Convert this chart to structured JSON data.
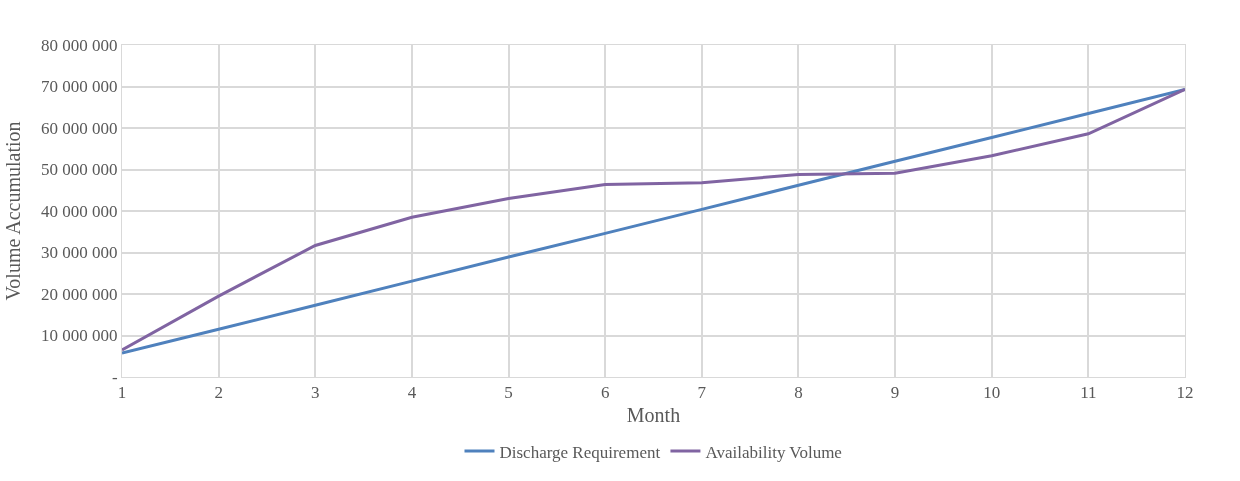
{
  "chart_data": {
    "type": "line",
    "xlabel": "Month",
    "ylabel": "Volume Accumulation",
    "x": [
      1,
      2,
      3,
      4,
      5,
      6,
      7,
      8,
      9,
      10,
      11,
      12
    ],
    "series": [
      {
        "name": "Discharge Requirement",
        "color": "#4f81bd",
        "values": [
          5800000,
          11500000,
          17300000,
          23100000,
          28900000,
          34600000,
          40400000,
          46200000,
          52000000,
          57700000,
          63500000,
          69300000
        ]
      },
      {
        "name": "Availability Volume",
        "color": "#8064a2",
        "values": [
          6500000,
          19500000,
          31700000,
          38500000,
          43000000,
          46400000,
          46800000,
          48800000,
          49100000,
          53300000,
          58600000,
          69300000
        ]
      }
    ],
    "xlim": [
      1,
      12
    ],
    "xticks": [
      1,
      2,
      3,
      4,
      5,
      6,
      7,
      8,
      9,
      10,
      11,
      12
    ],
    "ylim": [
      0,
      80000000
    ],
    "yticks": [
      {
        "value": 0,
        "label": "-"
      },
      {
        "value": 10000000,
        "label": "10 000 000"
      },
      {
        "value": 20000000,
        "label": "20 000 000"
      },
      {
        "value": 30000000,
        "label": "30 000 000"
      },
      {
        "value": 40000000,
        "label": "40 000 000"
      },
      {
        "value": 50000000,
        "label": "50 000 000"
      },
      {
        "value": 60000000,
        "label": "60 000 000"
      },
      {
        "value": 70000000,
        "label": "70 000 000"
      },
      {
        "value": 80000000,
        "label": "80 000 000"
      }
    ],
    "grid": true,
    "legend": "bottom",
    "marker": "none",
    "line_style": "solid"
  }
}
